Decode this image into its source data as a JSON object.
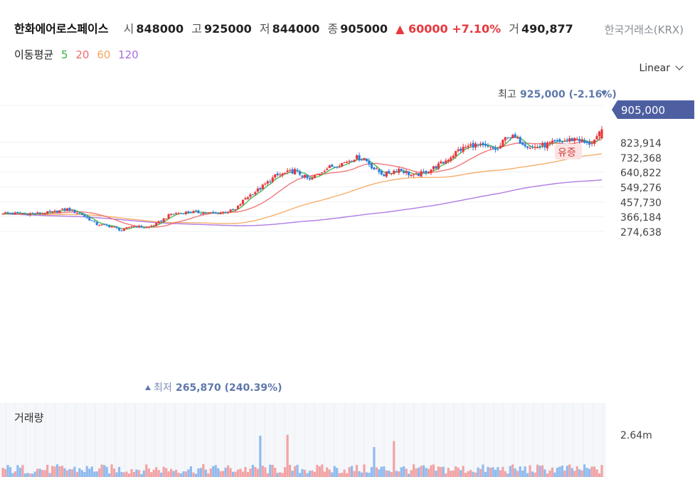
{
  "header": {
    "stock_name": "한화에어로스페이스",
    "open_label": "시",
    "open": "848000",
    "high_label": "고",
    "high": "925000",
    "low_label": "저",
    "low": "844000",
    "close_label": "종",
    "close": "905000",
    "change": "▲ 60000 +7.10%",
    "volume_label": "거",
    "volume": "490,877",
    "exchange": "한국거래소(KRX)"
  },
  "ma_legend": {
    "label": "이동평균",
    "items": [
      {
        "period": "5",
        "color": "#3cb043"
      },
      {
        "period": "20",
        "color": "#f0696b"
      },
      {
        "period": "60",
        "color": "#f5a65b"
      },
      {
        "period": "120",
        "color": "#a86ee0"
      }
    ]
  },
  "scale_selector": {
    "value": "Linear"
  },
  "volume_panel": {
    "title": "거래량",
    "tick": "2.64m"
  },
  "chart_data": {
    "type": "candlestick",
    "y_ticks": [
      "823,914",
      "732,368",
      "640,822",
      "549,276",
      "457,730",
      "366,184",
      "274,638"
    ],
    "y_tick_values": [
      823914,
      732368,
      640822,
      549276,
      457730,
      366184,
      274638
    ],
    "current_price": {
      "value": 905000,
      "label": "905,000"
    },
    "max_marker": {
      "label": "최고",
      "value": "925,000 (-2.16%)"
    },
    "min_marker": {
      "label": "최저",
      "value": "265,870 (240.39%)"
    },
    "annotation": "유증",
    "up_color": "#e8383d",
    "down_color": "#2d7fe0",
    "anchors": [
      [
        0,
        388000
      ],
      [
        12,
        382000
      ],
      [
        20,
        392000
      ],
      [
        26,
        412000
      ],
      [
        32,
        378000
      ],
      [
        38,
        318000
      ],
      [
        44,
        305000
      ],
      [
        48,
        280000
      ],
      [
        52,
        308000
      ],
      [
        58,
        298000
      ],
      [
        62,
        320000
      ],
      [
        68,
        382000
      ],
      [
        76,
        395000
      ],
      [
        86,
        385000
      ],
      [
        94,
        408000
      ],
      [
        98,
        480000
      ],
      [
        104,
        540000
      ],
      [
        110,
        615000
      ],
      [
        118,
        650000
      ],
      [
        124,
        590000
      ],
      [
        130,
        660000
      ],
      [
        138,
        700000
      ],
      [
        142,
        730000
      ],
      [
        146,
        725000
      ],
      [
        150,
        660000
      ],
      [
        154,
        625000
      ],
      [
        160,
        660000
      ],
      [
        166,
        615000
      ],
      [
        172,
        650000
      ],
      [
        178,
        700000
      ],
      [
        184,
        775000
      ],
      [
        190,
        810000
      ],
      [
        196,
        790000
      ],
      [
        200,
        780000
      ],
      [
        204,
        870000
      ],
      [
        208,
        840000
      ],
      [
        214,
        790000
      ],
      [
        220,
        810000
      ],
      [
        226,
        830000
      ],
      [
        232,
        850000
      ],
      [
        236,
        810000
      ],
      [
        240,
        845000
      ],
      [
        242,
        905000
      ]
    ],
    "ma_final": {
      "ma60": 754000,
      "ma120": 593000
    }
  }
}
